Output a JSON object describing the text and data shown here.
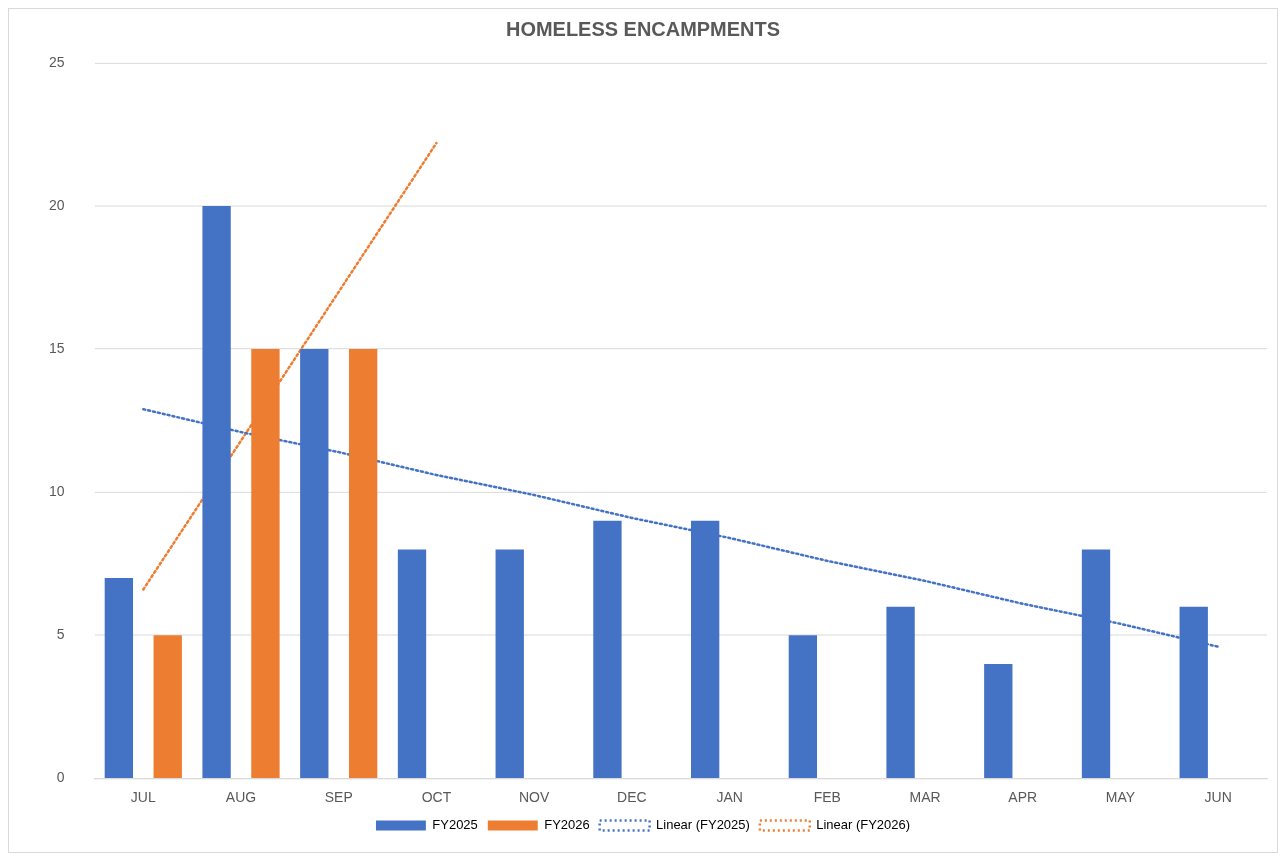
{
  "chart_data": {
    "type": "bar",
    "title": "HOMELESS ENCAMPMENTS",
    "categories": [
      "JUL",
      "AUG",
      "SEP",
      "OCT",
      "NOV",
      "DEC",
      "JAN",
      "FEB",
      "MAR",
      "APR",
      "MAY",
      "JUN"
    ],
    "series": [
      {
        "name": "FY2025",
        "color": "#4472c4",
        "values": [
          7,
          20,
          15,
          8,
          8,
          9,
          9,
          5,
          6,
          4,
          8,
          6
        ]
      },
      {
        "name": "FY2026",
        "color": "#ed7d31",
        "values": [
          5,
          15,
          15,
          null,
          null,
          null,
          null,
          null,
          null,
          null,
          null,
          null
        ]
      },
      {
        "name": "Linear (FY2025)",
        "type": "line",
        "color": "#4472c4",
        "line_style": "dotted",
        "marker": "none",
        "values": [
          12.9,
          12.1,
          11.4,
          10.6,
          9.9,
          9.1,
          8.4,
          7.6,
          6.9,
          6.1,
          5.4,
          4.6
        ]
      },
      {
        "name": "Linear (FY2026)",
        "type": "line",
        "color": "#ed7d31",
        "line_style": "dotted",
        "marker": "none",
        "values": [
          6.6,
          11.8,
          17.0,
          22.2,
          null,
          null,
          null,
          null,
          null,
          null,
          null,
          null
        ]
      }
    ],
    "ylim": [
      0,
      25
    ],
    "yticks": [
      0,
      5,
      10,
      15,
      20,
      25
    ],
    "grid": "y",
    "legend": "bottom"
  }
}
